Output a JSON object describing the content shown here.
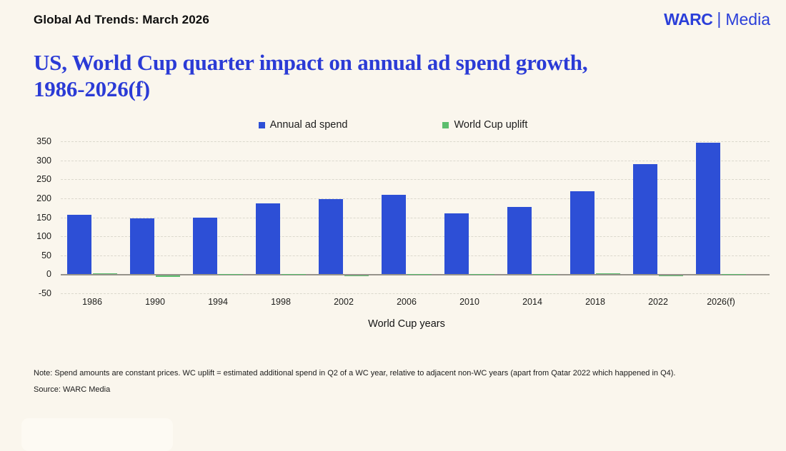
{
  "header": {
    "report_title": "Global Ad Trends: March 2026",
    "brand": {
      "name": "WARC",
      "divider": "|",
      "unit": "Media"
    }
  },
  "title": "US, World Cup quarter impact on annual ad spend growth,\n1986-2026(f)",
  "legend": [
    {
      "label": "Annual ad spend",
      "color": "#2D4FD6"
    },
    {
      "label": "World Cup uplift",
      "color": "#5CBE6E"
    }
  ],
  "chart_data": {
    "type": "bar",
    "title": "US, World Cup quarter impact on annual ad spend growth, 1986-2026(f)",
    "categories": [
      "1986",
      "1990",
      "1994",
      "1998",
      "2002",
      "2006",
      "2010",
      "2014",
      "2018",
      "2022",
      "2026(f)"
    ],
    "series": [
      {
        "name": "Annual ad spend",
        "color": "#2D4FD6",
        "values": [
          157,
          148,
          150,
          186,
          198,
          210,
          161,
          178,
          218,
          290,
          347
        ]
      },
      {
        "name": "World Cup uplift",
        "color": "#5CBE6E",
        "values": [
          2,
          -4,
          0.5,
          1.5,
          -2,
          1,
          1.5,
          1,
          3.5,
          -2,
          1
        ]
      }
    ],
    "xlabel": "World Cup years",
    "ylabel": "",
    "ylim": [
      -50,
      350
    ],
    "ytick_step": 50,
    "grid": "horizontal-dashed",
    "legend_position": "top-center",
    "colors": {
      "background": "#FAF6ED",
      "gridline": "#DBD8CD",
      "zero_line": "#96938B"
    }
  },
  "footer": {
    "note": "Note: Spend amounts are constant prices. WC uplift = estimated additional spend in Q2 of a WC year, relative to adjacent non-WC years (apart from Qatar 2022 which happened in Q4).",
    "source": "Source: WARC Media"
  }
}
